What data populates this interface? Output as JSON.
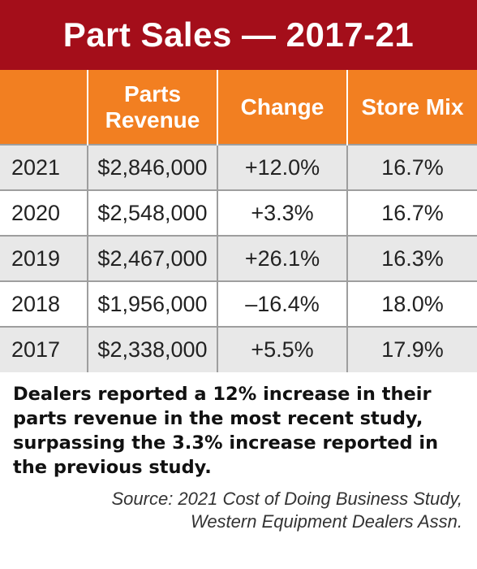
{
  "chart_data": {
    "type": "table",
    "title": "Part Sales — 2017-21",
    "columns": [
      {
        "line1": "",
        "line2": ""
      },
      {
        "line1": "Parts",
        "line2": "Revenue"
      },
      {
        "line1": "Change",
        "line2": ""
      },
      {
        "line1": "Store Mix",
        "line2": ""
      }
    ],
    "rows": [
      {
        "year": "2021",
        "revenue": "$2,846,000",
        "change": "+12.0%",
        "mix": "16.7%"
      },
      {
        "year": "2020",
        "revenue": "$2,548,000",
        "change": "+3.3%",
        "mix": "16.7%"
      },
      {
        "year": "2019",
        "revenue": "$2,467,000",
        "change": "+26.1%",
        "mix": "16.3%"
      },
      {
        "year": "2018",
        "revenue": "$1,956,000",
        "change": "–16.4%",
        "mix": "18.0%"
      },
      {
        "year": "2017",
        "revenue": "$2,338,000",
        "change": "+5.5%",
        "mix": "17.9%"
      }
    ],
    "values": {
      "revenue_usd": [
        2846000,
        2548000,
        2467000,
        1956000,
        2338000
      ],
      "change_pct": [
        12.0,
        3.3,
        26.1,
        -16.4,
        5.5
      ],
      "store_mix_pct": [
        16.7,
        16.7,
        16.3,
        18.0,
        17.9
      ]
    },
    "note": "Dealers reported a 12% increase in their parts revenue in the most recent study, surpassing the 3.3% increase reported in the previous study.",
    "source_line1": "Source: 2021 Cost of Doing Business Study,",
    "source_line2": "Western Equipment Dealers Assn."
  },
  "colors": {
    "title_bg": "#a40e1a",
    "header_bg": "#f27f21",
    "row_shaded": "#e8e8e8",
    "row_plain": "#ffffff"
  }
}
